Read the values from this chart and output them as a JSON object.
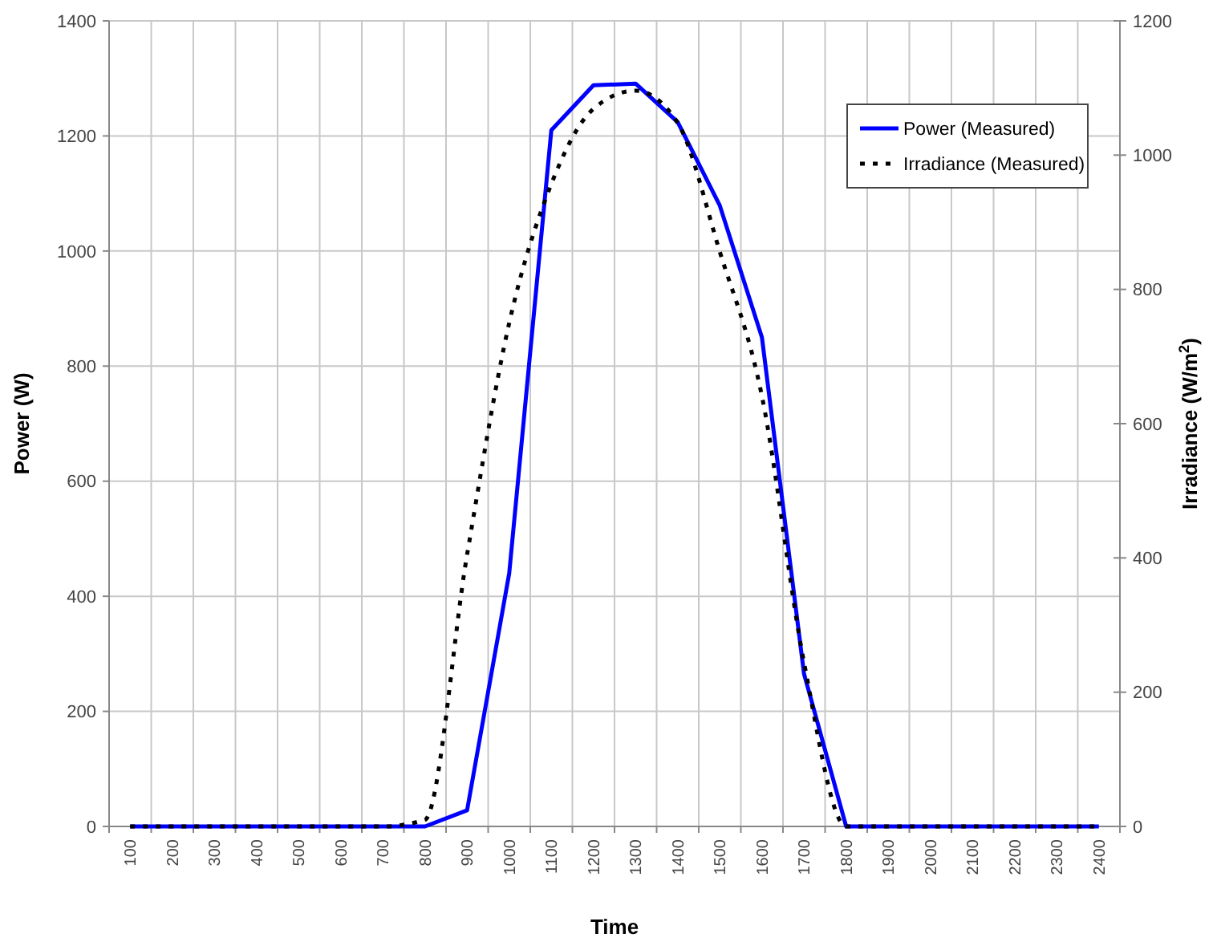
{
  "chart_data": {
    "type": "line",
    "xlabel": "Time",
    "ylabel": "Power (W)",
    "y2label": "Irradiance (W/m$^{2}$)",
    "categories": [
      "100",
      "200",
      "300",
      "400",
      "500",
      "600",
      "700",
      "800",
      "900",
      "1000",
      "1100",
      "1200",
      "1300",
      "1400",
      "1500",
      "1600",
      "1700",
      "1800",
      "1900",
      "2000",
      "2100",
      "2200",
      "2300",
      "2400"
    ],
    "series": [
      {
        "name": "Power (Measured)",
        "color": "#0000ff",
        "line_style": "solid",
        "values": [
          0,
          0,
          0,
          0,
          0,
          0,
          0,
          0,
          28,
          440,
          1210,
          1288,
          1291,
          1224,
          1079,
          850,
          265,
          0,
          0,
          0,
          0,
          0,
          0,
          0
        ]
      },
      {
        "name": "Irradiance (Measured)",
        "color": "#000000",
        "line_style": "dotted",
        "axis": "y2",
        "values": [
          0,
          0,
          0,
          0,
          0,
          0,
          0,
          10,
          405,
          750,
          957,
          1069,
          1096,
          1048,
          856,
          641,
          244,
          0,
          0,
          0,
          0,
          0,
          0,
          0
        ]
      }
    ],
    "ylim": [
      0,
      1400
    ],
    "yticks": [
      0,
      200,
      400,
      600,
      800,
      1000,
      1200,
      1400
    ],
    "y2lim": [
      0,
      1200
    ],
    "y2ticks": [
      0,
      200,
      400,
      600,
      800,
      1000,
      1200
    ],
    "grid": true,
    "legend": "top right"
  }
}
